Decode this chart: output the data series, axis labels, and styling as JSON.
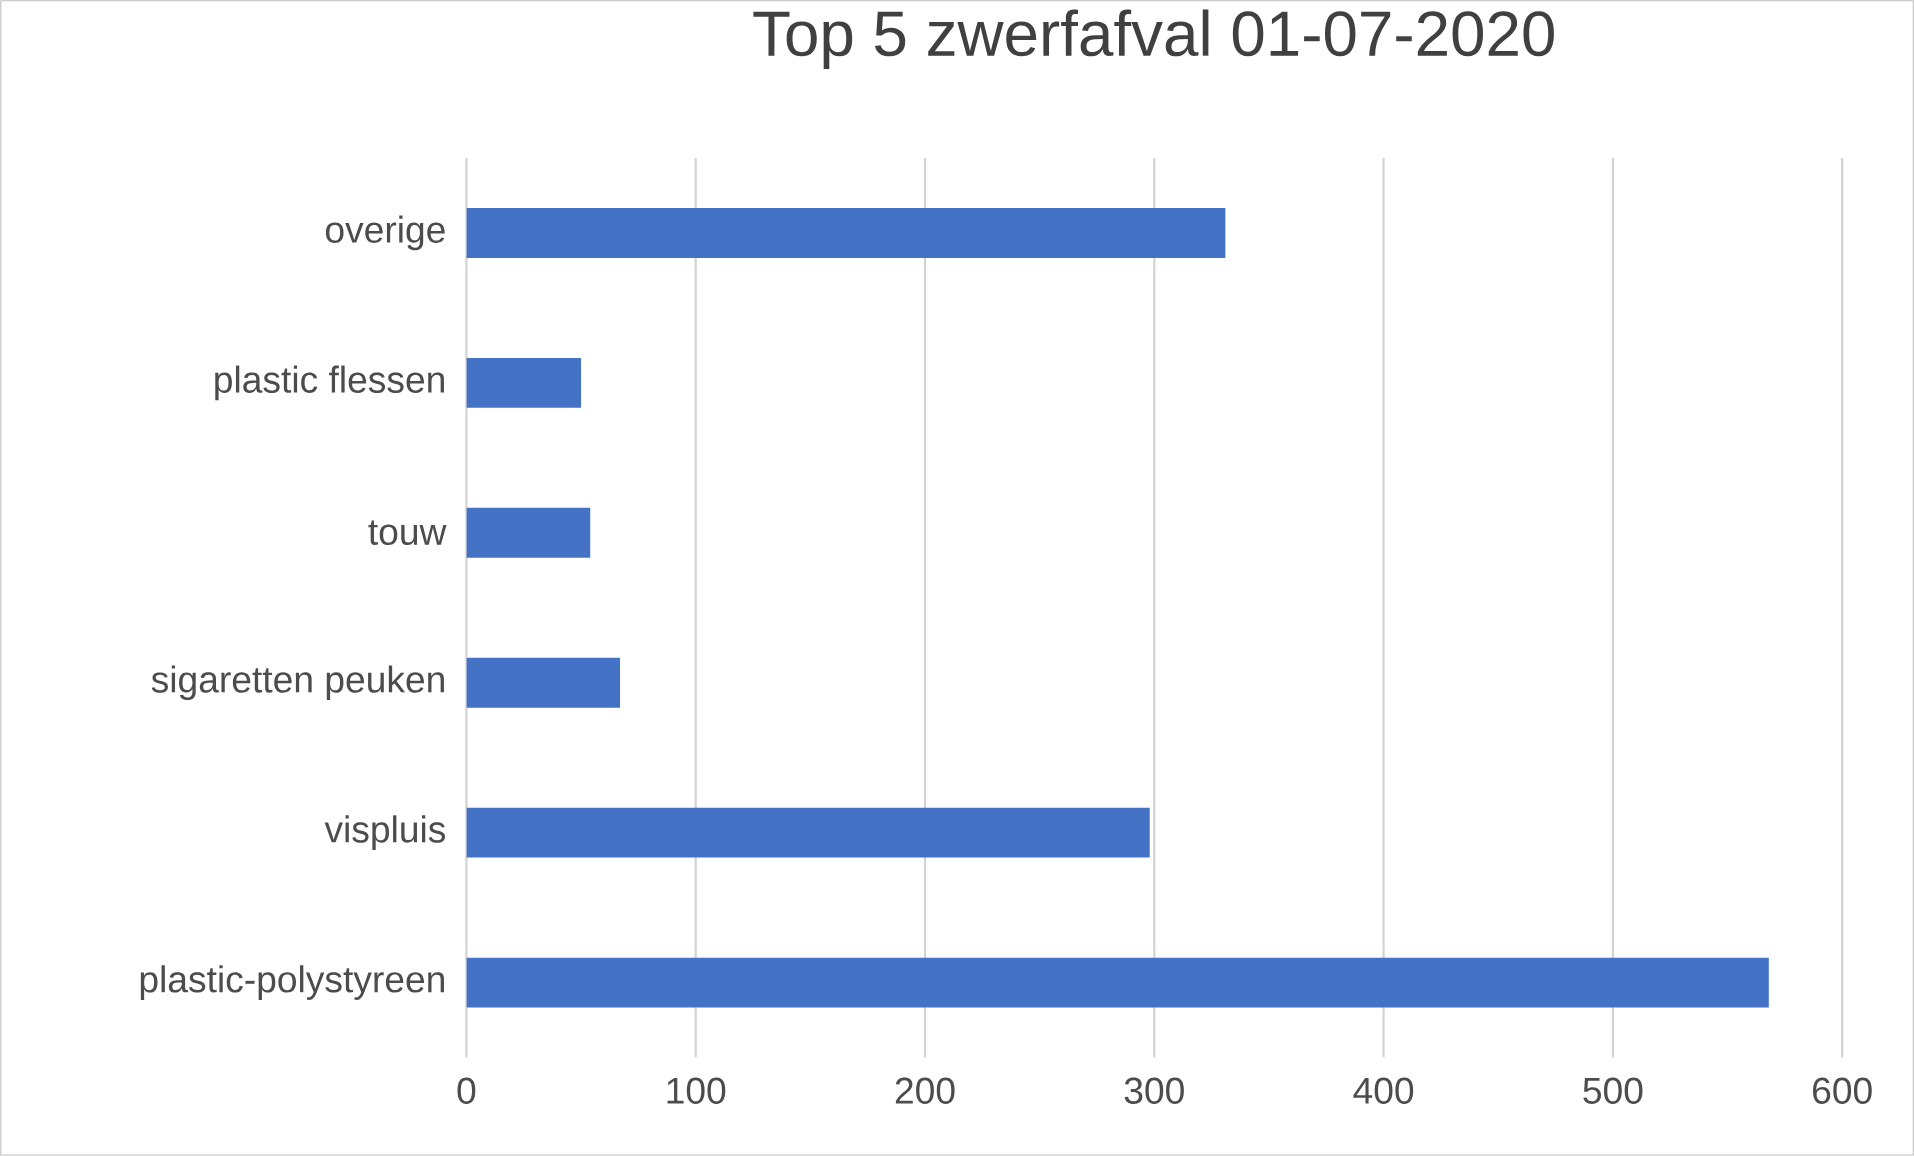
{
  "chart_data": {
    "type": "bar",
    "orientation": "horizontal",
    "title": "Top 5 zwerfafval 01-07-2020",
    "categories": [
      "overige",
      "plastic flessen",
      "touw",
      "sigaretten peuken",
      "vispluis",
      "plastic-polystyreen"
    ],
    "values": [
      331,
      50,
      54,
      67,
      298,
      568
    ],
    "color": "#4472c4",
    "xlim": [
      0,
      600
    ],
    "xticks": [
      0,
      100,
      200,
      300,
      400,
      500,
      600
    ],
    "grid": "x"
  }
}
